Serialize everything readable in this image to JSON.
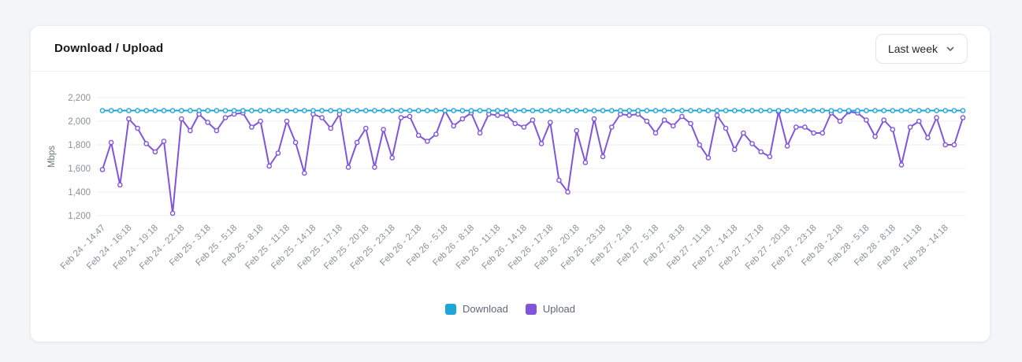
{
  "card": {
    "title": "Download / Upload",
    "range_selector": {
      "value": "Last week"
    }
  },
  "chart_data": {
    "type": "line",
    "title": "Download / Upload",
    "xlabel": "",
    "ylabel": "Mbps",
    "ylim": [
      1200,
      2200
    ],
    "yticks": [
      2200,
      2000,
      1800,
      1600,
      1400,
      1200
    ],
    "grid": true,
    "legend_position": "bottom",
    "label_every_n_points": 3,
    "x_labels": [
      "Feb 24 - 14:47",
      "Feb 24 - 16:18",
      "Feb 24 - 19:18",
      "Feb 24 - 22:18",
      "Feb 25 - 3:18",
      "Feb 25 - 5:18",
      "Feb 25 - 8:18",
      "Feb 25 - 11:18",
      "Feb 25 - 14:18",
      "Feb 25 - 17:18",
      "Feb 25 - 20:18",
      "Feb 25 - 23:18",
      "Feb 26 - 2:18",
      "Feb 26 - 5:18",
      "Feb 26 - 8:18",
      "Feb 26 - 11:18",
      "Feb 26 - 14:18",
      "Feb 26 - 17:18",
      "Feb 26 - 20:18",
      "Feb 26 - 23:18",
      "Feb 27 - 2:18",
      "Feb 27 - 5:18",
      "Feb 27 - 8:18",
      "Feb 27 - 11:18",
      "Feb 27 - 14:18",
      "Feb 27 - 17:18",
      "Feb 27 - 20:18",
      "Feb 27 - 23:18",
      "Feb 28 - 2:18",
      "Feb 28 - 5:18",
      "Feb 28 - 8:18",
      "Feb 28 - 11:18",
      "Feb 28 - 14:18"
    ],
    "colors": {
      "grid": "#edeef0",
      "tick_text": "#8b9198",
      "axis_text": "#6e747b",
      "marker_fill": "#ffffff"
    },
    "series": [
      {
        "name": "Download",
        "color": "#1fa6d9",
        "values": [
          2090,
          2090,
          2090,
          2090,
          2090,
          2090,
          2090,
          2090,
          2090,
          2090,
          2090,
          2090,
          2090,
          2090,
          2090,
          2090,
          2090,
          2090,
          2090,
          2090,
          2090,
          2090,
          2090,
          2090,
          2090,
          2090,
          2090,
          2090,
          2090,
          2090,
          2090,
          2090,
          2090,
          2090,
          2090,
          2090,
          2090,
          2090,
          2090,
          2090,
          2090,
          2090,
          2090,
          2090,
          2090,
          2090,
          2090,
          2090,
          2090,
          2090,
          2090,
          2090,
          2090,
          2090,
          2090,
          2090,
          2090,
          2090,
          2090,
          2090,
          2090,
          2090,
          2090,
          2090,
          2090,
          2090,
          2090,
          2090,
          2090,
          2090,
          2090,
          2090,
          2090,
          2090,
          2090,
          2090,
          2090,
          2090,
          2090,
          2090,
          2090,
          2090,
          2090,
          2090,
          2090,
          2090,
          2090,
          2090,
          2090,
          2090,
          2090,
          2090,
          2090,
          2090,
          2090,
          2090,
          2090,
          2090,
          2090
        ]
      },
      {
        "name": "Upload",
        "color": "#8155db",
        "values": [
          1590,
          1820,
          1460,
          2020,
          1940,
          1810,
          1740,
          1830,
          1220,
          2020,
          1920,
          2060,
          1990,
          1920,
          2030,
          2060,
          2070,
          1950,
          2000,
          1620,
          1730,
          2000,
          1820,
          1560,
          2060,
          2030,
          1940,
          2060,
          1610,
          1820,
          1940,
          1610,
          1930,
          1690,
          2030,
          2040,
          1880,
          1830,
          1890,
          2090,
          1960,
          2020,
          2070,
          1900,
          2060,
          2050,
          2050,
          1980,
          1950,
          2010,
          1810,
          1990,
          1500,
          1400,
          1920,
          1650,
          2020,
          1700,
          1950,
          2060,
          2050,
          2060,
          2000,
          1900,
          2010,
          1960,
          2040,
          1980,
          1800,
          1690,
          2050,
          1940,
          1760,
          1900,
          1810,
          1740,
          1700,
          2080,
          1790,
          1950,
          1950,
          1900,
          1900,
          2070,
          2000,
          2080,
          2070,
          2010,
          1870,
          2010,
          1930,
          1630,
          1950,
          2000,
          1860,
          2030,
          1800,
          1800,
          2030
        ]
      }
    ]
  }
}
